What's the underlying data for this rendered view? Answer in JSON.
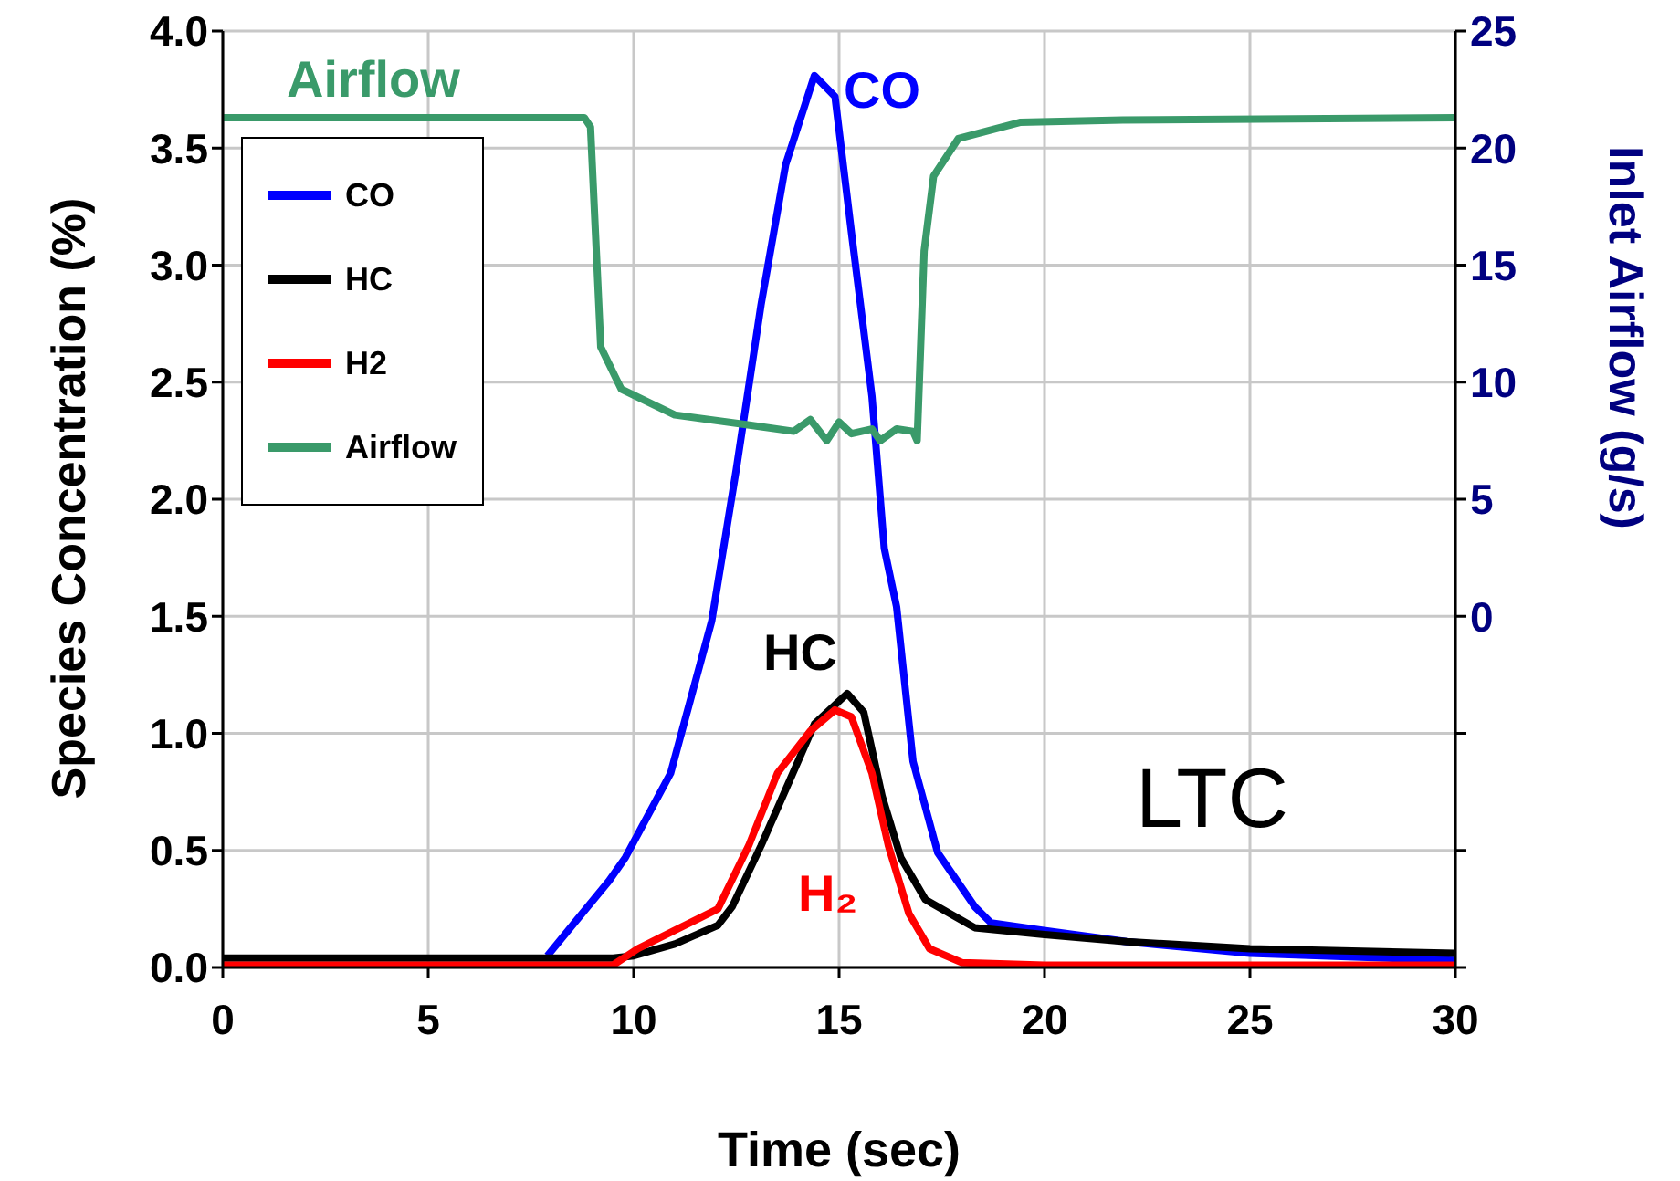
{
  "chart_data": {
    "type": "line",
    "xlabel": "Time (sec)",
    "ylabel": "Species Concentration (%)",
    "y2label": "Inlet Airflow (g/s)",
    "xlim": [
      0,
      30
    ],
    "xticks": [
      0,
      5,
      10,
      15,
      20,
      25,
      30
    ],
    "ylim": [
      0,
      4
    ],
    "yticks": [
      {
        "value": 0,
        "label": "0.0"
      },
      {
        "value": 0.5,
        "label": "0.5"
      },
      {
        "value": 1,
        "label": "1.0"
      },
      {
        "value": 1.5,
        "label": "1.5"
      },
      {
        "value": 2,
        "label": "2.0"
      },
      {
        "value": 2.5,
        "label": "2.5"
      },
      {
        "value": 3,
        "label": "3.0"
      },
      {
        "value": 3.5,
        "label": "3.5"
      },
      {
        "value": 4,
        "label": "4.0"
      }
    ],
    "y2lim": [
      -15,
      25
    ],
    "y2ticks": [
      {
        "value": -15,
        "label": null
      },
      {
        "value": -10,
        "label": null
      },
      {
        "value": -5,
        "label": null
      },
      0,
      5,
      10,
      15,
      20,
      25
    ],
    "grid": true,
    "legend": "top left",
    "marker": "none",
    "line_style": "solid",
    "series": [
      {
        "name": "CO",
        "color": "#0000ff",
        "x": [
          7.9,
          9.4,
          9.8,
          10.9,
          11.9,
          12.5,
          13.1,
          13.7,
          14.4,
          14.9,
          15.3,
          15.8,
          16.1,
          16.4,
          16.8,
          17.4,
          18.3,
          18.7,
          19.9,
          22,
          25,
          30
        ],
        "values": [
          0.05,
          0.37,
          0.47,
          0.83,
          1.48,
          2.13,
          2.83,
          3.43,
          3.81,
          3.72,
          3.14,
          2.44,
          1.79,
          1.54,
          0.88,
          0.49,
          0.26,
          0.19,
          0.16,
          0.11,
          0.06,
          0.03
        ]
      },
      {
        "name": "HC",
        "color": "#000000",
        "x": [
          0,
          5,
          9.5,
          10,
          11,
          12.05,
          12.4,
          13.1,
          13.8,
          14.4,
          15.2,
          15.6,
          16.05,
          16.5,
          17.1,
          18.3,
          20,
          22,
          25,
          30
        ],
        "values": [
          0.04,
          0.04,
          0.04,
          0.05,
          0.1,
          0.18,
          0.26,
          0.52,
          0.8,
          1.04,
          1.17,
          1.09,
          0.73,
          0.47,
          0.29,
          0.17,
          0.14,
          0.11,
          0.08,
          0.06
        ]
      },
      {
        "name": "H2",
        "color": "#ff0000",
        "x": [
          0,
          5,
          9.5,
          10.1,
          12.05,
          12.8,
          13.5,
          14.3,
          14.9,
          15.3,
          15.8,
          16.2,
          16.7,
          17.2,
          18,
          20,
          25,
          30
        ],
        "values": [
          0.01,
          0.01,
          0.01,
          0.08,
          0.25,
          0.52,
          0.83,
          1.01,
          1.1,
          1.07,
          0.83,
          0.52,
          0.23,
          0.08,
          0.02,
          0.01,
          0.01,
          0.01
        ]
      },
      {
        "name": "Airflow",
        "color": "#3a9a6a",
        "axis": "y2",
        "x": [
          0,
          5,
          8.8,
          8.95,
          9.2,
          9.7,
          11,
          12.7,
          13.9,
          14.3,
          14.7,
          15,
          15.3,
          15.8,
          16,
          16.4,
          16.8,
          16.9,
          17.07,
          17.3,
          17.9,
          19.4,
          21.9,
          30
        ],
        "values": [
          21.3,
          21.3,
          21.3,
          20.9,
          11.5,
          9.7,
          8.6,
          8.2,
          7.9,
          8.4,
          7.5,
          8.3,
          7.8,
          8,
          7.5,
          8,
          7.9,
          7.5,
          15.6,
          18.8,
          20.4,
          21.1,
          21.2,
          21.3
        ]
      }
    ],
    "annotations": [
      "CO",
      "HC",
      "H₂",
      "Airflow",
      "LTC"
    ]
  }
}
